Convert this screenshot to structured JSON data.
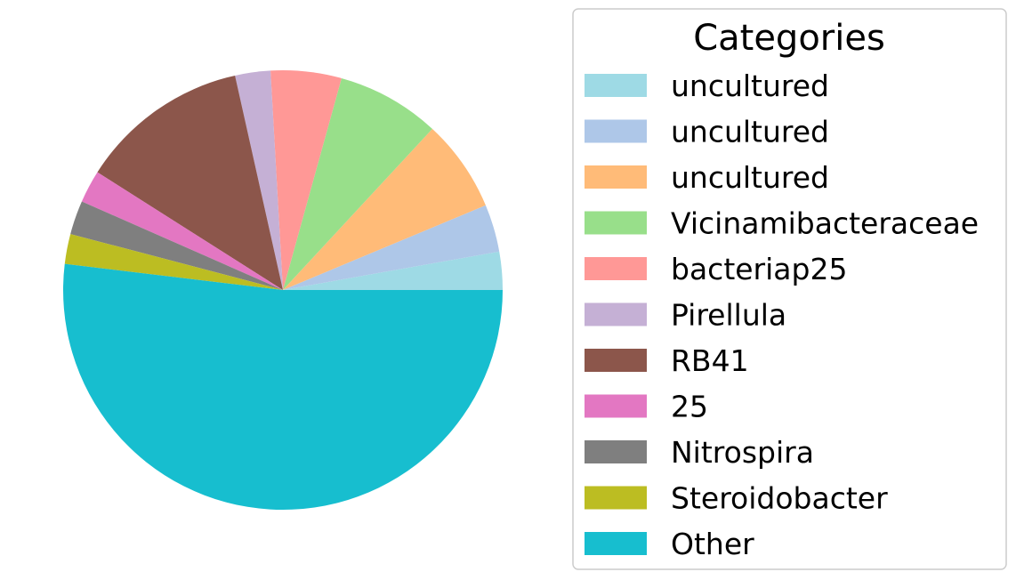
{
  "chart_data": {
    "type": "pie",
    "title": "",
    "legend_title": "Categories",
    "legend_position": "right",
    "start_angle_deg": 0,
    "direction": "counterclockwise",
    "labels": [
      "uncultured",
      "uncultured",
      "uncultured",
      "Vicinamibacteraceae",
      "bacteriap25",
      "Pirellula",
      "RB41",
      "25",
      "Nitrospira",
      "Steroidobacter",
      "Other"
    ],
    "values": [
      2.8,
      3.5,
      6.8,
      7.6,
      5.2,
      2.6,
      12.5,
      2.4,
      2.5,
      2.2,
      51.9
    ],
    "colors": [
      "#9edae5",
      "#aec7e8",
      "#ffbb78",
      "#98df8a",
      "#ff9896",
      "#c5b0d5",
      "#8c564b",
      "#e377c2",
      "#7f7f7f",
      "#bcbd22",
      "#17becf"
    ]
  }
}
